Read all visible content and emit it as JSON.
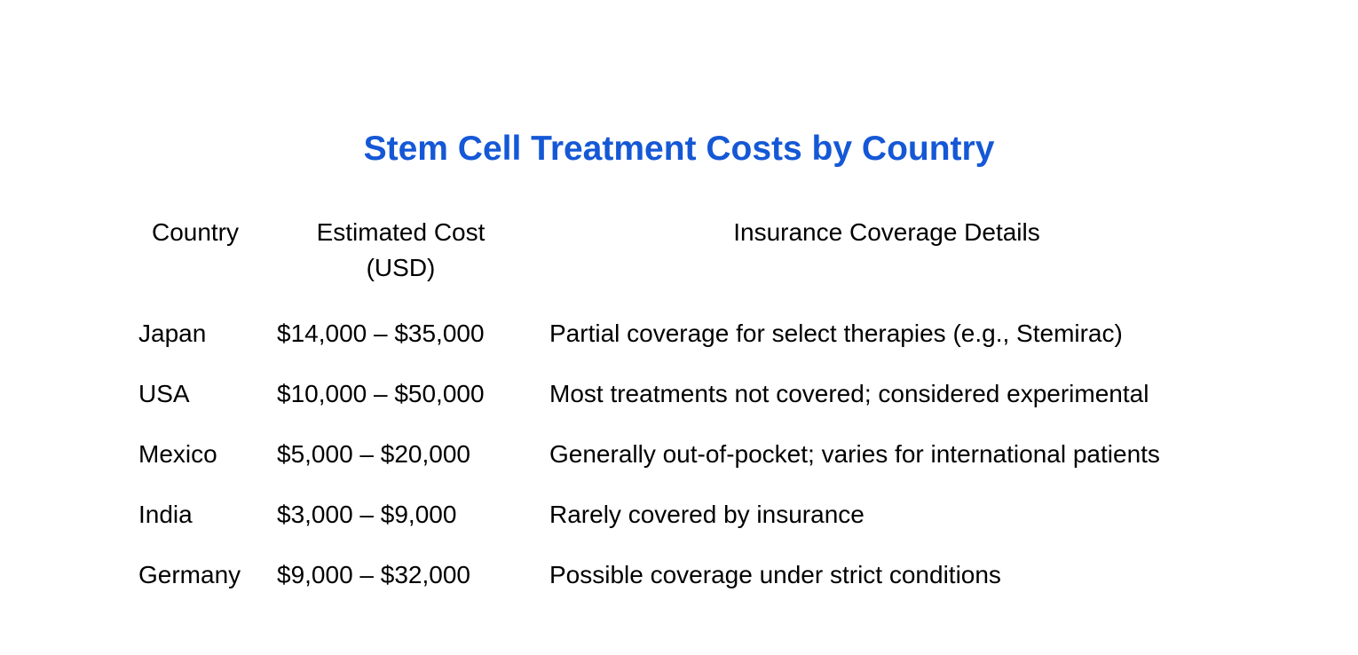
{
  "title": "Stem Cell Treatment Costs by Country",
  "table": {
    "headers": {
      "country": "Country",
      "cost_line1": "Estimated Cost",
      "cost_line2": "(USD)",
      "insurance": "Insurance Coverage Details"
    },
    "rows": [
      {
        "country": "Japan",
        "cost": "$14,000 – $35,000",
        "insurance": "Partial coverage for select therapies (e.g., Stemirac)"
      },
      {
        "country": "USA",
        "cost": "$10,000 – $50,000",
        "insurance": "Most treatments not covered; considered experimental"
      },
      {
        "country": "Mexico",
        "cost": "$5,000 – $20,000",
        "insurance": "Generally out-of-pocket; varies for international patients"
      },
      {
        "country": "India",
        "cost": "$3,000 – $9,000",
        "insurance": "Rarely covered by insurance"
      },
      {
        "country": "Germany",
        "cost": "$9,000 – $32,000",
        "insurance": "Possible coverage under strict conditions"
      }
    ]
  },
  "colors": {
    "title": "#1558d6",
    "text": "#000000",
    "background": "#ffffff"
  }
}
